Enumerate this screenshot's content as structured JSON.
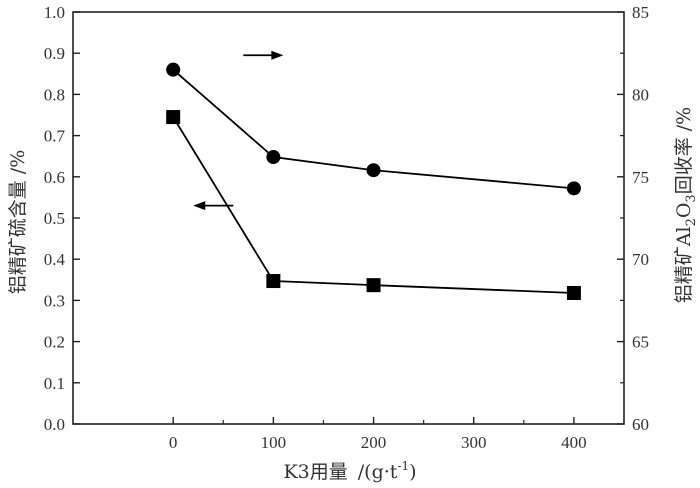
{
  "chart_data": {
    "type": "line",
    "x": [
      0,
      100,
      200,
      400
    ],
    "xlim": [
      -100,
      450
    ],
    "x_ticks": [
      0,
      100,
      200,
      300,
      400
    ],
    "x_tick_labels": [
      "0",
      "100",
      "200",
      "300",
      "400"
    ],
    "xlabel": {
      "main": "K3用量",
      "unit_prefix": "/(g·t",
      "unit_sup": "-1",
      "unit_suffix": ")"
    },
    "left_axis": {
      "ylim": [
        0.0,
        1.0
      ],
      "ticks": [
        0.0,
        0.1,
        0.2,
        0.3,
        0.4,
        0.5,
        0.6,
        0.7,
        0.8,
        0.9,
        1.0
      ],
      "tick_labels": [
        "0.0",
        "0.1",
        "0.2",
        "0.3",
        "0.4",
        "0.5",
        "0.6",
        "0.7",
        "0.8",
        "0.9",
        "1.0"
      ],
      "label": "铝精矿硫含量 /%"
    },
    "right_axis": {
      "ylim": [
        60,
        85
      ],
      "ticks": [
        60,
        65,
        70,
        75,
        80,
        85
      ],
      "tick_labels": [
        "60",
        "65",
        "70",
        "75",
        "80",
        "85"
      ],
      "label": {
        "prefix": "铝精矿Al",
        "sub1": "2",
        "mid": "O",
        "sub2": "3",
        "suffix": "回收率 /%"
      }
    },
    "series": [
      {
        "name": "铝精矿硫含量",
        "axis": "left",
        "marker": "square",
        "values": [
          0.745,
          0.347,
          0.337,
          0.318
        ]
      },
      {
        "name": "铝精矿Al2O3回收率",
        "axis": "right",
        "marker": "circle",
        "values": [
          81.5,
          76.2,
          75.4,
          74.3
        ]
      }
    ],
    "annotations": [
      {
        "type": "arrow",
        "direction": "right",
        "refers_to": "right-axis",
        "x_from": 70,
        "x_to": 110,
        "y": 0.895,
        "axis": "left"
      },
      {
        "type": "arrow",
        "direction": "left",
        "refers_to": "left-axis",
        "x_from": 60,
        "x_to": 20,
        "y": 0.53,
        "axis": "left"
      }
    ],
    "colors": {
      "line": "#000000",
      "axis": "#222222",
      "text": "#333333",
      "background": "#ffffff"
    }
  }
}
